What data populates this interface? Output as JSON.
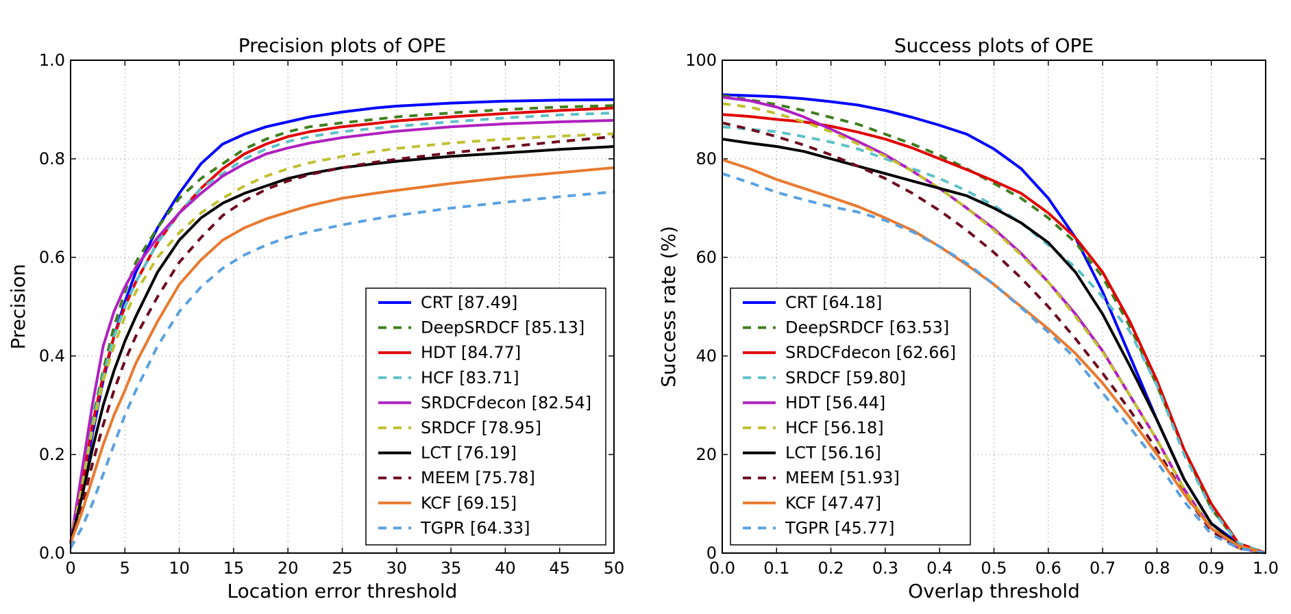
{
  "chart_data": [
    {
      "type": "line",
      "title": "Precision plots of OPE",
      "xlabel": "Location error threshold",
      "ylabel": "Precision",
      "xlim": [
        0,
        50
      ],
      "ylim": [
        0,
        1.0
      ],
      "xticks": [
        "0",
        "5",
        "10",
        "15",
        "20",
        "25",
        "30",
        "35",
        "40",
        "45",
        "50"
      ],
      "yticks": [
        "0.0",
        "0.2",
        "0.4",
        "0.6",
        "0.8",
        "1.0"
      ],
      "grid": true,
      "legend_position": "lower-right",
      "x": [
        0,
        1,
        2,
        3,
        4,
        5,
        6,
        8,
        10,
        12,
        14,
        16,
        18,
        20,
        22,
        25,
        28,
        30,
        35,
        40,
        45,
        50
      ],
      "series": [
        {
          "name": "CRT [87.49]",
          "color": "#0000ff",
          "style": "solid",
          "values": [
            0.02,
            0.12,
            0.24,
            0.35,
            0.44,
            0.51,
            0.57,
            0.66,
            0.73,
            0.79,
            0.83,
            0.85,
            0.865,
            0.875,
            0.885,
            0.895,
            0.903,
            0.907,
            0.913,
            0.917,
            0.919,
            0.92
          ]
        },
        {
          "name": "DeepSRDCF [85.13]",
          "color": "#3f7f1f",
          "style": "dashed",
          "values": [
            0.02,
            0.14,
            0.27,
            0.37,
            0.46,
            0.53,
            0.59,
            0.66,
            0.72,
            0.76,
            0.79,
            0.82,
            0.84,
            0.855,
            0.865,
            0.873,
            0.88,
            0.885,
            0.893,
            0.9,
            0.905,
            0.908
          ]
        },
        {
          "name": "HDT [84.77]",
          "color": "#e00000",
          "style": "solid",
          "values": [
            0.02,
            0.13,
            0.26,
            0.36,
            0.44,
            0.5,
            0.55,
            0.63,
            0.69,
            0.74,
            0.78,
            0.81,
            0.83,
            0.845,
            0.855,
            0.865,
            0.872,
            0.877,
            0.885,
            0.892,
            0.898,
            0.903
          ]
        },
        {
          "name": "HCF [83.71]",
          "color": "#5cc0c8",
          "style": "dashed",
          "values": [
            0.02,
            0.13,
            0.26,
            0.36,
            0.44,
            0.5,
            0.55,
            0.63,
            0.69,
            0.74,
            0.77,
            0.8,
            0.82,
            0.835,
            0.845,
            0.855,
            0.862,
            0.866,
            0.875,
            0.883,
            0.889,
            0.893
          ]
        },
        {
          "name": "SRDCFdecon [82.54]",
          "color": "#b020c0",
          "style": "solid",
          "values": [
            0.02,
            0.16,
            0.3,
            0.42,
            0.49,
            0.54,
            0.58,
            0.64,
            0.69,
            0.73,
            0.765,
            0.79,
            0.81,
            0.822,
            0.832,
            0.843,
            0.851,
            0.856,
            0.865,
            0.871,
            0.875,
            0.878
          ]
        },
        {
          "name": "SRDCF [78.95]",
          "color": "#c0c030",
          "style": "dashed",
          "values": [
            0.02,
            0.13,
            0.25,
            0.35,
            0.42,
            0.48,
            0.53,
            0.6,
            0.65,
            0.69,
            0.72,
            0.745,
            0.765,
            0.78,
            0.792,
            0.805,
            0.815,
            0.821,
            0.832,
            0.84,
            0.846,
            0.851
          ]
        },
        {
          "name": "LCT [76.19]",
          "color": "#000000",
          "style": "solid",
          "values": [
            0.02,
            0.11,
            0.21,
            0.3,
            0.37,
            0.43,
            0.48,
            0.57,
            0.635,
            0.68,
            0.71,
            0.73,
            0.745,
            0.76,
            0.77,
            0.782,
            0.79,
            0.795,
            0.805,
            0.812,
            0.819,
            0.825
          ]
        },
        {
          "name": "MEEM [75.78]",
          "color": "#6e0a1e",
          "style": "dashed",
          "values": [
            0.02,
            0.09,
            0.18,
            0.26,
            0.33,
            0.39,
            0.44,
            0.52,
            0.59,
            0.64,
            0.685,
            0.715,
            0.738,
            0.755,
            0.768,
            0.782,
            0.793,
            0.799,
            0.812,
            0.824,
            0.835,
            0.845
          ]
        },
        {
          "name": "KCF [69.15]",
          "color": "#e87a30",
          "style": "solid",
          "values": [
            0.02,
            0.08,
            0.15,
            0.22,
            0.28,
            0.33,
            0.385,
            0.47,
            0.545,
            0.595,
            0.635,
            0.66,
            0.678,
            0.692,
            0.705,
            0.72,
            0.73,
            0.736,
            0.75,
            0.762,
            0.772,
            0.782
          ]
        },
        {
          "name": "TGPR [64.33]",
          "color": "#5aa0e0",
          "style": "dashed",
          "values": [
            0.01,
            0.05,
            0.1,
            0.16,
            0.22,
            0.28,
            0.33,
            0.42,
            0.49,
            0.54,
            0.578,
            0.605,
            0.625,
            0.641,
            0.652,
            0.666,
            0.678,
            0.685,
            0.7,
            0.712,
            0.723,
            0.733
          ]
        }
      ]
    },
    {
      "type": "line",
      "title": "Success plots of OPE",
      "xlabel": "Overlap threshold",
      "ylabel": "Success rate (%)",
      "xlim": [
        0.0,
        1.0
      ],
      "ylim": [
        0,
        100
      ],
      "xticks": [
        "0.0",
        "0.1",
        "0.2",
        "0.3",
        "0.4",
        "0.5",
        "0.6",
        "0.7",
        "0.8",
        "0.9",
        "1.0"
      ],
      "yticks": [
        "0",
        "20",
        "40",
        "60",
        "80",
        "100"
      ],
      "grid": true,
      "legend_position": "lower-left",
      "x": [
        0,
        0.05,
        0.1,
        0.15,
        0.2,
        0.25,
        0.3,
        0.35,
        0.4,
        0.45,
        0.5,
        0.55,
        0.6,
        0.65,
        0.7,
        0.75,
        0.8,
        0.85,
        0.9,
        0.95,
        1.0
      ],
      "series": [
        {
          "name": "CRT [64.18]",
          "color": "#0000ff",
          "style": "solid",
          "values": [
            93,
            92.8,
            92.6,
            92.2,
            91.6,
            90.9,
            89.8,
            88.4,
            86.8,
            85,
            82,
            78,
            72,
            64,
            53,
            40,
            27,
            15,
            6,
            2,
            0
          ]
        },
        {
          "name": "DeepSRDCF [63.53]",
          "color": "#3f7f1f",
          "style": "dashed",
          "values": [
            92.8,
            92,
            91,
            89.8,
            88.4,
            87,
            85,
            83,
            80.7,
            78,
            75,
            72,
            68,
            63,
            56,
            46,
            34,
            21,
            9,
            2,
            0
          ]
        },
        {
          "name": "SRDCFdecon [62.66]",
          "color": "#e00000",
          "style": "solid",
          "values": [
            89,
            88.6,
            88,
            87.5,
            86.6,
            85.4,
            84,
            82.2,
            80,
            77.8,
            75.5,
            73,
            69,
            64,
            57,
            47,
            35,
            21,
            10,
            2,
            0
          ]
        },
        {
          "name": "SRDCF [59.80]",
          "color": "#5cc0c8",
          "style": "dashed",
          "values": [
            86.5,
            86,
            85.5,
            84.5,
            83.4,
            82,
            80,
            78,
            76,
            73.5,
            70.5,
            67,
            62.5,
            58,
            52,
            45,
            34,
            20,
            9,
            2,
            0
          ]
        },
        {
          "name": "HDT [56.44]",
          "color": "#b020c0",
          "style": "solid",
          "values": [
            92.5,
            91.8,
            90.5,
            88.5,
            86,
            83.5,
            80.8,
            77.5,
            74,
            70,
            65.8,
            60.8,
            55,
            48.5,
            41,
            32,
            23,
            13,
            5,
            1,
            0
          ]
        },
        {
          "name": "HCF [56.18]",
          "color": "#c0c030",
          "style": "dashed",
          "values": [
            91.2,
            90.5,
            89.2,
            87.5,
            85.5,
            83,
            80.5,
            77.5,
            74,
            70,
            65.5,
            60.5,
            55,
            48,
            40.8,
            32,
            23,
            13,
            5,
            1,
            0
          ]
        },
        {
          "name": "LCT [56.16]",
          "color": "#000000",
          "style": "solid",
          "values": [
            84,
            83.2,
            82.5,
            81.5,
            80,
            78.5,
            77,
            75.5,
            74,
            72.5,
            70,
            67,
            63,
            57,
            48.5,
            38,
            27,
            15,
            6,
            1.5,
            0
          ]
        },
        {
          "name": "MEEM [51.93]",
          "color": "#6e0a1e",
          "style": "dashed",
          "values": [
            87.3,
            86,
            84.5,
            82.8,
            80.8,
            78.5,
            76,
            73,
            69.5,
            65.5,
            61,
            55.8,
            50,
            43.5,
            36.5,
            29,
            21,
            12,
            4.5,
            1,
            0
          ]
        },
        {
          "name": "KCF [47.47]",
          "color": "#e87a30",
          "style": "solid",
          "values": [
            79.8,
            78,
            75.8,
            74,
            72.2,
            70.3,
            68,
            65.5,
            62.2,
            58.5,
            54.5,
            50,
            45.5,
            40.5,
            34.5,
            27.5,
            20,
            12,
            5,
            1.5,
            0
          ]
        },
        {
          "name": "TGPR [45.77]",
          "color": "#5aa0e0",
          "style": "dashed",
          "values": [
            77,
            75.2,
            73.2,
            71.7,
            70.3,
            69.2,
            67.5,
            65.2,
            62.2,
            58.8,
            54.5,
            49.8,
            44.8,
            39.5,
            32.5,
            25.5,
            18.5,
            10.5,
            3.8,
            1,
            0
          ]
        }
      ]
    }
  ]
}
